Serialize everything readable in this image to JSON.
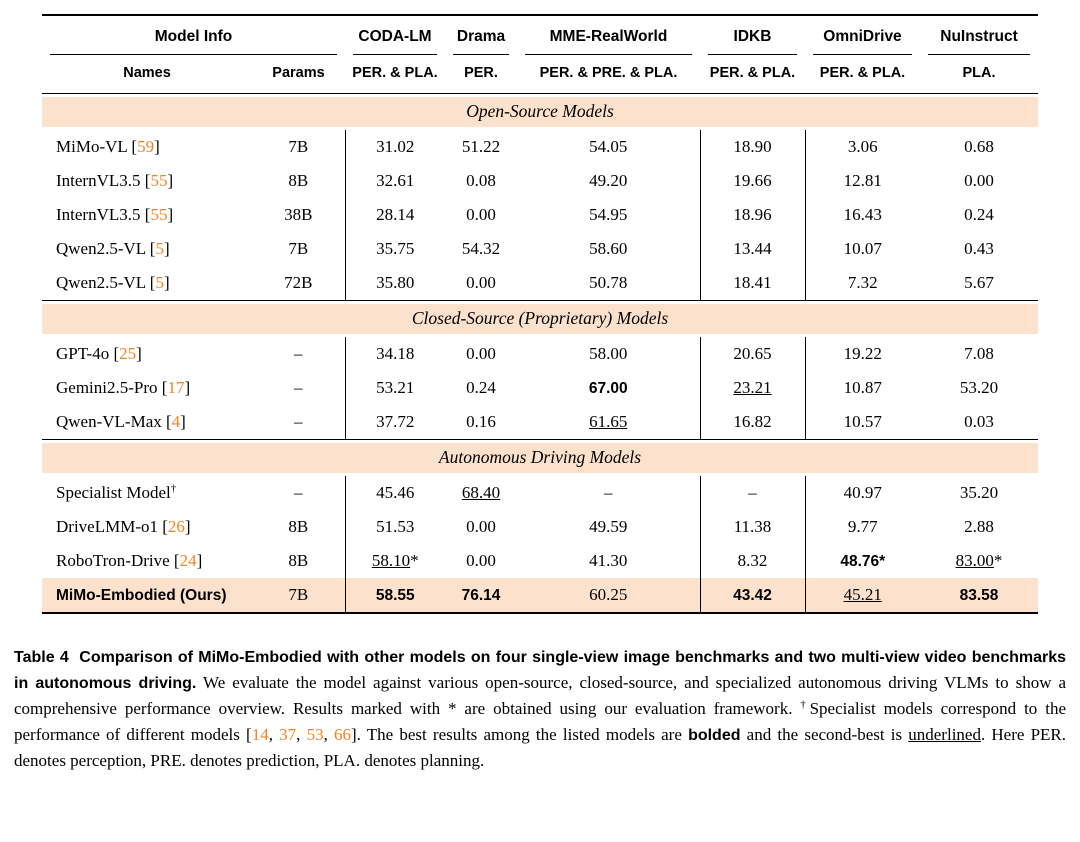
{
  "colors": {
    "band_bg": "#FCE2CC",
    "highlight_bg": "#FCE2CC",
    "citation": "#F5821F"
  },
  "table": {
    "header": {
      "model_info": "Model Info",
      "sub_names": "Names",
      "sub_params": "Params",
      "benchmarks": [
        {
          "name": "CODA-LM",
          "metric": "PER. & PLA."
        },
        {
          "name": "Drama",
          "metric": "PER."
        },
        {
          "name": "MME-RealWorld",
          "metric": "PER. & PRE. & PLA."
        },
        {
          "name": "IDKB",
          "metric": "PER. & PLA."
        },
        {
          "name": "OmniDrive",
          "metric": "PER. & PLA."
        },
        {
          "name": "NuInstruct",
          "metric": "PLA."
        }
      ]
    },
    "sections": [
      {
        "title": "Open-Source Models",
        "rows": [
          {
            "name": "MiMo-VL",
            "cite": "59",
            "params": "7B",
            "values": [
              "31.02",
              "51.22",
              "54.05",
              "18.90",
              "3.06",
              "0.68"
            ]
          },
          {
            "name": "InternVL3.5",
            "cite": "55",
            "params": "8B",
            "values": [
              "32.61",
              "0.08",
              "49.20",
              "19.66",
              "12.81",
              "0.00"
            ]
          },
          {
            "name": "InternVL3.5",
            "cite": "55",
            "params": "38B",
            "values": [
              "28.14",
              "0.00",
              "54.95",
              "18.96",
              "16.43",
              "0.24"
            ]
          },
          {
            "name": "Qwen2.5-VL",
            "cite": "5",
            "params": "7B",
            "values": [
              "35.75",
              "54.32",
              "58.60",
              "13.44",
              "10.07",
              "0.43"
            ]
          },
          {
            "name": "Qwen2.5-VL",
            "cite": "5",
            "params": "72B",
            "values": [
              "35.80",
              "0.00",
              "50.78",
              "18.41",
              "7.32",
              "5.67"
            ]
          }
        ]
      },
      {
        "title": "Closed-Source (Proprietary) Models",
        "rows": [
          {
            "name": "GPT-4o",
            "cite": "25",
            "params": "–",
            "values": [
              "34.18",
              "0.00",
              "58.00",
              "20.65",
              "19.22",
              "7.08"
            ]
          },
          {
            "name": "Gemini2.5-Pro",
            "cite": "17",
            "params": "–",
            "values": [
              "53.21",
              "0.24",
              {
                "t": "67.00",
                "s": "b"
              },
              {
                "t": "23.21",
                "s": "u"
              },
              "10.87",
              "53.20"
            ]
          },
          {
            "name": "Qwen-VL-Max",
            "cite": "4",
            "params": "–",
            "values": [
              "37.72",
              "0.16",
              {
                "t": "61.65",
                "s": "u"
              },
              "16.82",
              "10.57",
              "0.03"
            ]
          }
        ]
      },
      {
        "title": "Autonomous Driving Models",
        "rows": [
          {
            "name": "Specialist Model",
            "sup": "†",
            "params": "–",
            "values": [
              "45.46",
              {
                "t": "68.40",
                "s": "u"
              },
              "–",
              "–",
              "40.97",
              "35.20"
            ]
          },
          {
            "name": "DriveLMM-o1",
            "cite": "26",
            "params": "8B",
            "values": [
              "51.53",
              "0.00",
              "49.59",
              "11.38",
              "9.77",
              "2.88"
            ]
          },
          {
            "name": "RoboTron-Drive",
            "cite": "24",
            "params": "8B",
            "values": [
              {
                "t": "58.10",
                "s": "u",
                "suf": "*"
              },
              "0.00",
              "41.30",
              "8.32",
              {
                "t": "48.76",
                "s": "b",
                "suf": "*"
              },
              {
                "t": "83.00",
                "s": "u",
                "suf": "*"
              }
            ]
          },
          {
            "name": "MiMo-Embodied (Ours)",
            "bold_name": true,
            "highlight": true,
            "params": "7B",
            "values": [
              {
                "t": "58.55",
                "s": "b"
              },
              {
                "t": "76.14",
                "s": "b"
              },
              "60.25",
              {
                "t": "43.42",
                "s": "b"
              },
              {
                "t": "45.21",
                "s": "u"
              },
              {
                "t": "83.58",
                "s": "b"
              }
            ]
          }
        ]
      }
    ]
  },
  "caption": {
    "segments": [
      {
        "text": "Table 4  Comparison of MiMo-Embodied with other models on four single-view image benchmarks and two multi-view video benchmarks in autonomous driving.",
        "style": "bold"
      },
      {
        "text": " We evaluate the model against various open-source, closed-source, and specialized autonomous driving VLMs to show a comprehensive performance overview. Results marked with * are obtained using our evaluation framework. ",
        "style": "plain"
      },
      {
        "text": "†",
        "style": "sup"
      },
      {
        "text": "Specialist models correspond to the performance of different models [",
        "style": "plain"
      },
      {
        "text": "14",
        "style": "cite"
      },
      {
        "text": ", ",
        "style": "plain"
      },
      {
        "text": "37",
        "style": "cite"
      },
      {
        "text": ", ",
        "style": "plain"
      },
      {
        "text": "53",
        "style": "cite"
      },
      {
        "text": ", ",
        "style": "plain"
      },
      {
        "text": "66",
        "style": "cite"
      },
      {
        "text": "]. The best results among the listed models are ",
        "style": "plain"
      },
      {
        "text": "bolded",
        "style": "bold"
      },
      {
        "text": " and the second-best is ",
        "style": "plain"
      },
      {
        "text": "underlined",
        "style": "underline"
      },
      {
        "text": ". Here PER. denotes perception, PRE. denotes prediction, PLA. denotes planning.",
        "style": "plain"
      }
    ]
  }
}
